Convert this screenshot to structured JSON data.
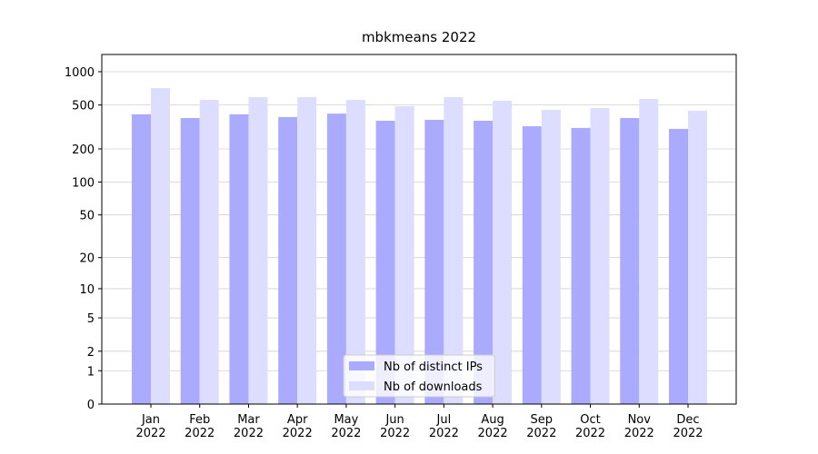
{
  "chart_data": {
    "type": "bar",
    "title": "mbkmeans 2022",
    "yscale": "log1p",
    "categories": [
      "Jan\n2022",
      "Feb\n2022",
      "Mar\n2022",
      "Apr\n2022",
      "May\n2022",
      "Jun\n2022",
      "Jul\n2022",
      "Aug\n2022",
      "Sep\n2022",
      "Oct\n2022",
      "Nov\n2022",
      "Dec\n2022"
    ],
    "series": [
      {
        "name": "Nb of distinct IPs",
        "color": "#aaaaff",
        "values": [
          412,
          381,
          412,
          389,
          418,
          360,
          367,
          360,
          321,
          310,
          381,
          304
        ]
      },
      {
        "name": "Nb of downloads",
        "color": "#ddddff",
        "values": [
          711,
          556,
          589,
          589,
          556,
          487,
          589,
          546,
          452,
          469,
          567,
          444
        ]
      }
    ],
    "ylim": [
      0,
      1431
    ],
    "yticks": [
      0,
      1,
      2,
      5,
      10,
      20,
      50,
      100,
      200,
      500,
      1000
    ],
    "grid": true,
    "legend": "lower center"
  }
}
